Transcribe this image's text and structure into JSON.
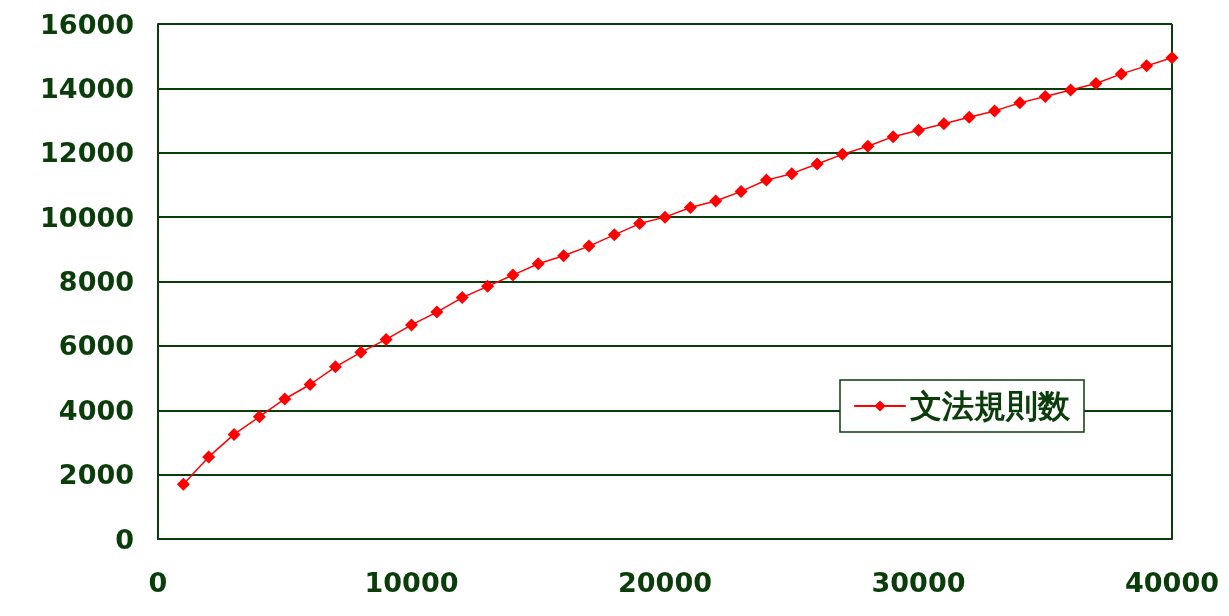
{
  "chart_data": {
    "type": "line",
    "x": [
      1000,
      2000,
      3000,
      4000,
      5000,
      6000,
      7000,
      8000,
      9000,
      10000,
      11000,
      12000,
      13000,
      14000,
      15000,
      16000,
      17000,
      18000,
      19000,
      20000,
      21000,
      22000,
      23000,
      24000,
      25000,
      26000,
      27000,
      28000,
      29000,
      30000,
      31000,
      32000,
      33000,
      34000,
      35000,
      36000,
      37000,
      38000,
      39000,
      40000
    ],
    "series": [
      {
        "name": "文法規則数",
        "color": "#ff0000",
        "values": [
          1700,
          2550,
          3250,
          3800,
          4350,
          4800,
          5350,
          5800,
          6200,
          6650,
          7050,
          7500,
          7850,
          8200,
          8550,
          8800,
          9100,
          9450,
          9800,
          10000,
          10300,
          10500,
          10800,
          11150,
          11350,
          11650,
          11950,
          12200,
          12500,
          12700,
          12900,
          13100,
          13300,
          13550,
          13750,
          13950,
          14150,
          14450,
          14700,
          14950
        ]
      }
    ],
    "xlim": [
      0,
      40000
    ],
    "xticks": [
      0,
      10000,
      20000,
      30000,
      40000
    ],
    "ylim": [
      0,
      16000
    ],
    "yticks": [
      0,
      2000,
      4000,
      6000,
      8000,
      10000,
      12000,
      14000,
      16000
    ],
    "grid": "y",
    "legend": "bottom right",
    "marker": "diamond",
    "line_style": "solid"
  }
}
